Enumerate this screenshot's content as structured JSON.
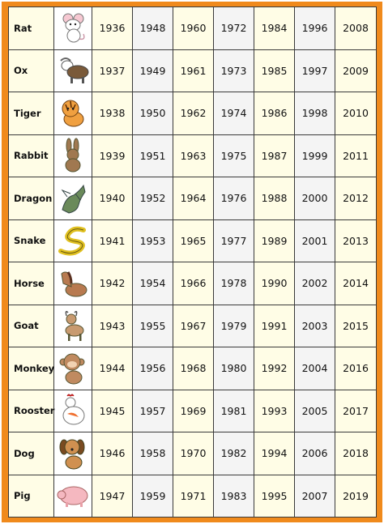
{
  "colors": {
    "frame": "#f08a1c",
    "cream": "#fffde6",
    "grey": "#f4f4f4",
    "line": "#3a3a3a"
  },
  "rows": [
    {
      "animal": "Rat",
      "icon": "rat-icon",
      "years": [
        "1936",
        "1948",
        "1960",
        "1972",
        "1984",
        "1996",
        "2008"
      ]
    },
    {
      "animal": "Ox",
      "icon": "ox-icon",
      "years": [
        "1937",
        "1949",
        "1961",
        "1973",
        "1985",
        "1997",
        "2009"
      ]
    },
    {
      "animal": "Tiger",
      "icon": "tiger-icon",
      "years": [
        "1938",
        "1950",
        "1962",
        "1974",
        "1986",
        "1998",
        "2010"
      ]
    },
    {
      "animal": "Rabbit",
      "icon": "rabbit-icon",
      "years": [
        "1939",
        "1951",
        "1963",
        "1975",
        "1987",
        "1999",
        "2011"
      ]
    },
    {
      "animal": "Dragon",
      "icon": "dragon-icon",
      "years": [
        "1940",
        "1952",
        "1964",
        "1976",
        "1988",
        "2000",
        "2012"
      ]
    },
    {
      "animal": "Snake",
      "icon": "snake-icon",
      "years": [
        "1941",
        "1953",
        "1965",
        "1977",
        "1989",
        "2001",
        "2013"
      ]
    },
    {
      "animal": "Horse",
      "icon": "horse-icon",
      "years": [
        "1942",
        "1954",
        "1966",
        "1978",
        "1990",
        "2002",
        "2014"
      ]
    },
    {
      "animal": "Goat",
      "icon": "goat-icon",
      "years": [
        "1943",
        "1955",
        "1967",
        "1979",
        "1991",
        "2003",
        "2015"
      ]
    },
    {
      "animal": "Monkey",
      "icon": "monkey-icon",
      "years": [
        "1944",
        "1956",
        "1968",
        "1980",
        "1992",
        "2004",
        "2016"
      ]
    },
    {
      "animal": "Rooster",
      "icon": "rooster-icon",
      "years": [
        "1945",
        "1957",
        "1969",
        "1981",
        "1993",
        "2005",
        "2017"
      ]
    },
    {
      "animal": "Dog",
      "icon": "dog-icon",
      "years": [
        "1946",
        "1958",
        "1970",
        "1982",
        "1994",
        "2006",
        "2018"
      ]
    },
    {
      "animal": "Pig",
      "icon": "pig-icon",
      "years": [
        "1947",
        "1959",
        "1971",
        "1983",
        "1995",
        "2007",
        "2019"
      ]
    }
  ]
}
